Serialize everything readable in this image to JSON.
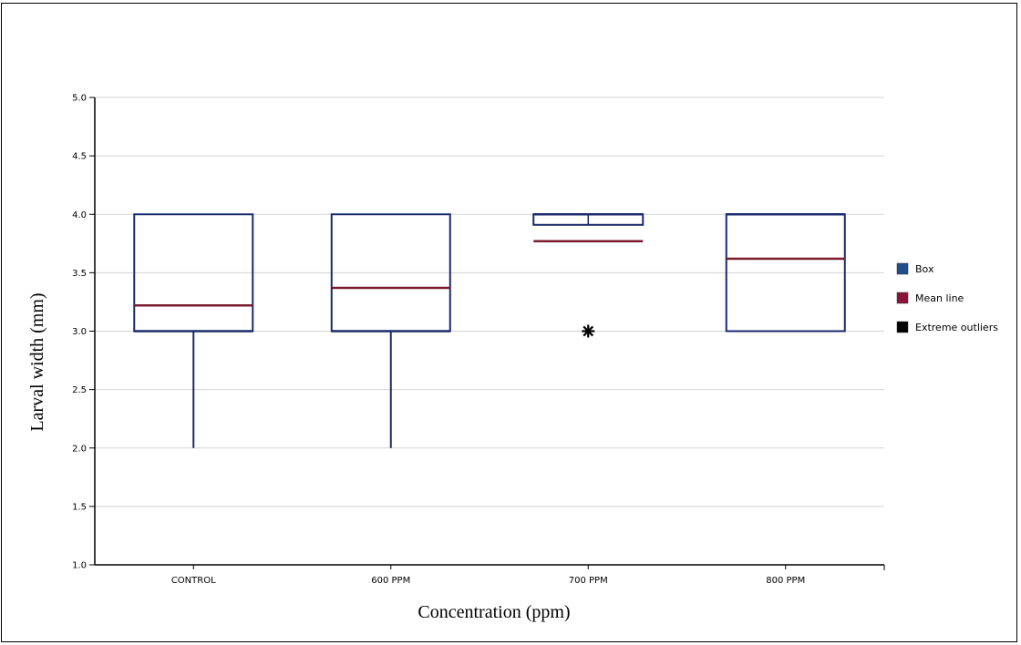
{
  "chart_data": {
    "type": "box",
    "xlabel": "Concentration (ppm)",
    "ylabel": "Larval width (mm)",
    "ylim": [
      1.0,
      5.0
    ],
    "yticks": [
      "1.0",
      "1.5",
      "2.0",
      "2.5",
      "3.0",
      "3.5",
      "4.0",
      "4.5",
      "5.0"
    ],
    "grid": true,
    "legend_position": "right",
    "categories": [
      "CONTROL",
      "600 PPM",
      "700 PPM",
      "800 PPM"
    ],
    "boxes": [
      {
        "q1": 3.0,
        "median": 3.0,
        "q3": 4.0,
        "whisker_low": 2.0,
        "whisker_high": 4.0,
        "mean": 3.22,
        "outliers": []
      },
      {
        "q1": 3.0,
        "median": 3.0,
        "q3": 4.0,
        "whisker_low": 2.0,
        "whisker_high": 4.0,
        "mean": 3.37,
        "outliers": []
      },
      {
        "q1": 3.91,
        "median": 4.0,
        "q3": 4.0,
        "whisker_low": 3.91,
        "whisker_high": 4.0,
        "mean": 3.77,
        "outliers": [
          3.0
        ]
      },
      {
        "q1": 3.0,
        "median": 4.0,
        "q3": 4.0,
        "whisker_low": 3.0,
        "whisker_high": 4.0,
        "mean": 3.62,
        "outliers": []
      }
    ],
    "legend": [
      {
        "label": "Box",
        "color": "#1e4e8c"
      },
      {
        "label": "Mean line",
        "color": "#8a1538"
      },
      {
        "label": "Extreme outliers",
        "color": "#000000"
      }
    ],
    "colors": {
      "box_stroke": "#1a2a6c",
      "mean_line": "#7a1a2e",
      "grid": "#d4d4d4",
      "axis": "#000000"
    }
  }
}
